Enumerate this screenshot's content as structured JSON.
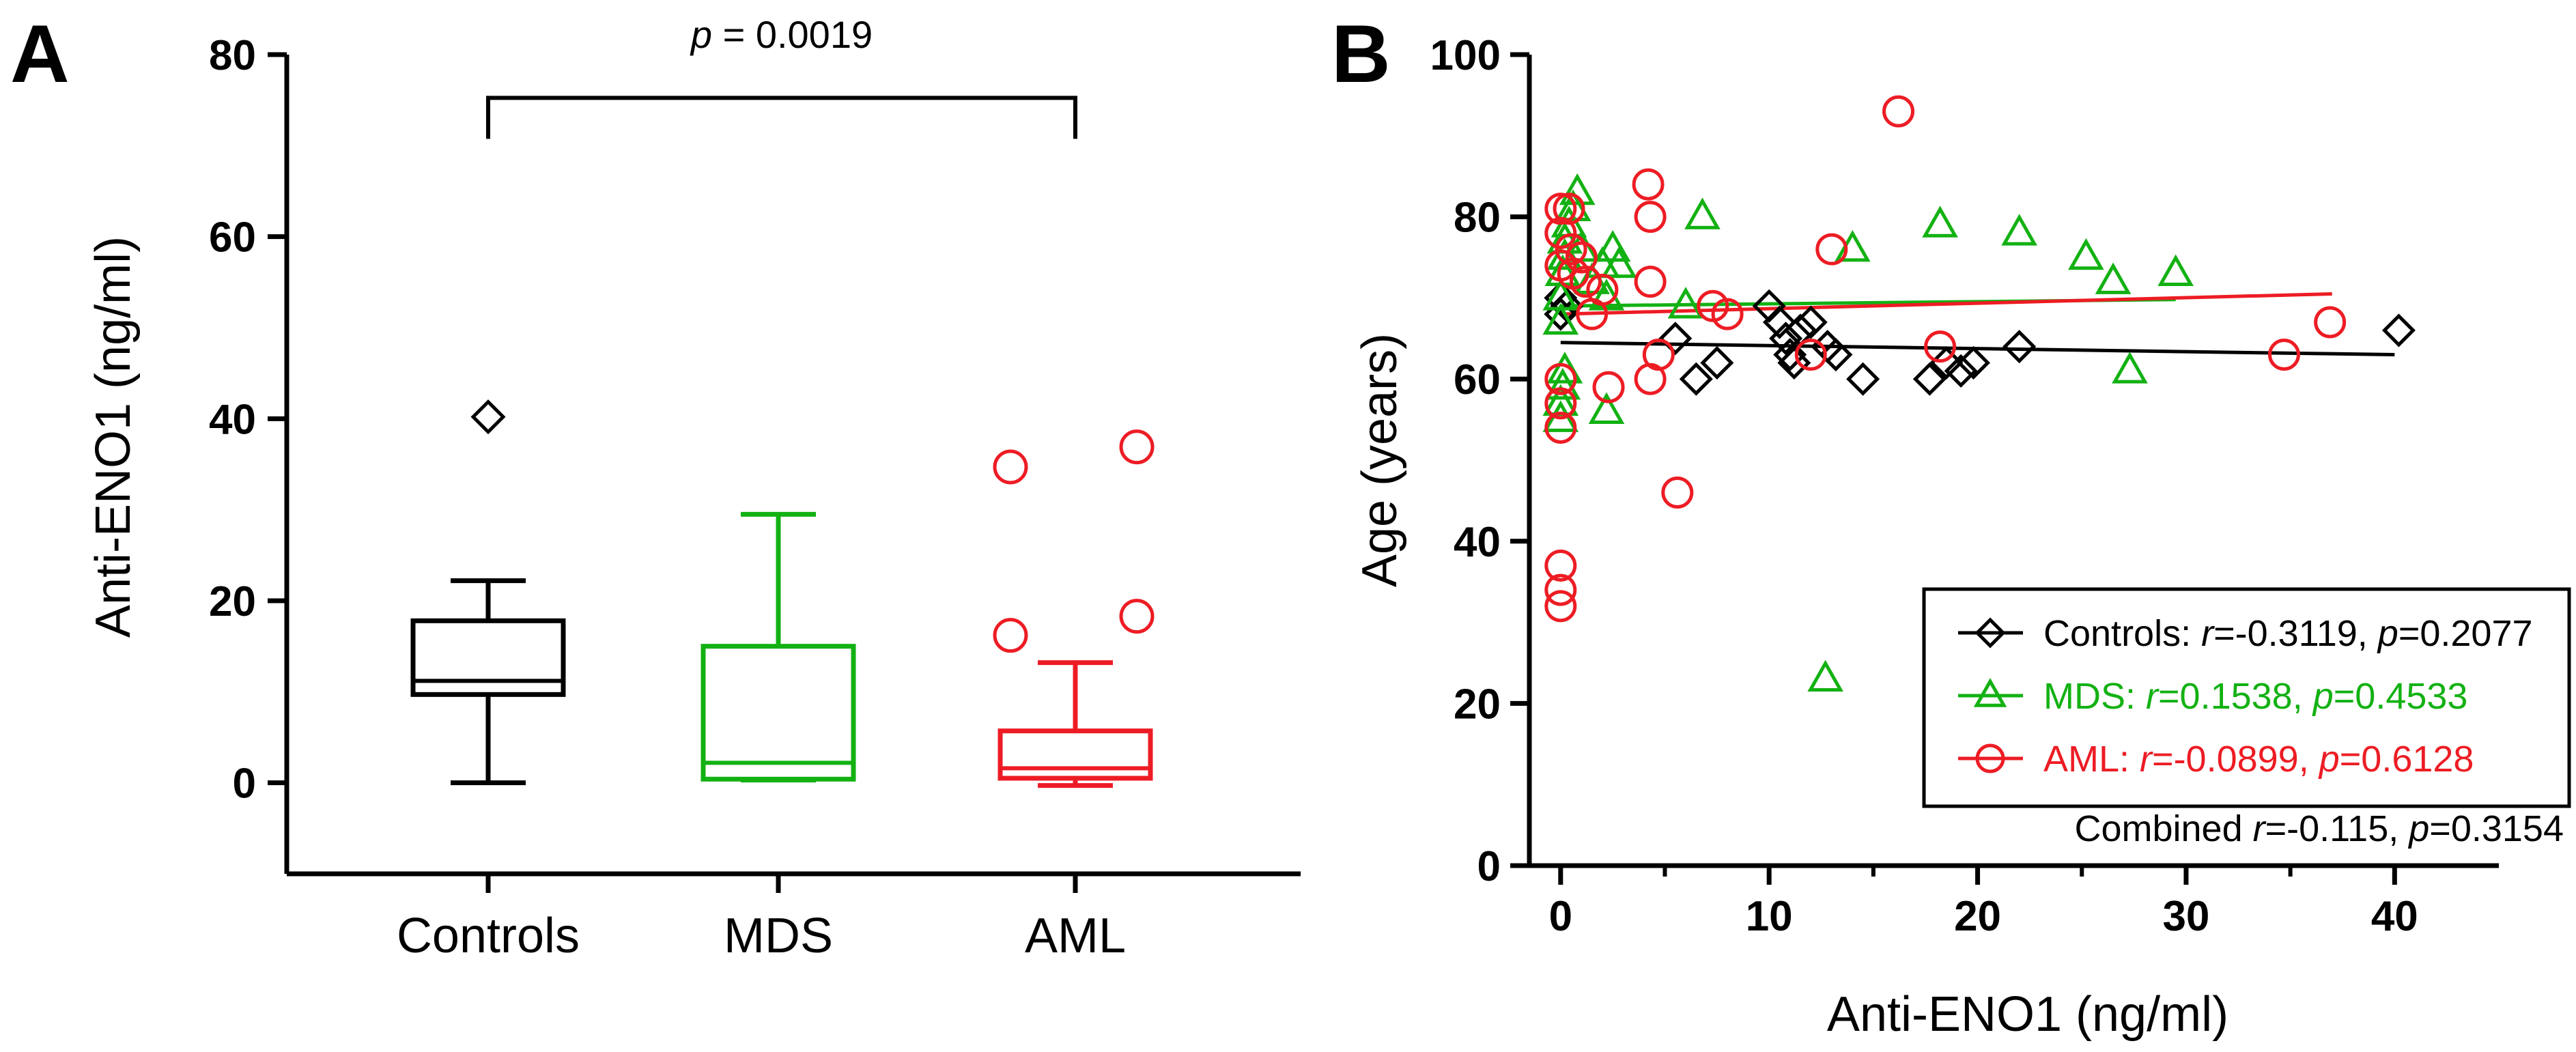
{
  "chart_data": [
    {
      "panel": "A",
      "type": "box",
      "ylabel": "Anti-ENO1 (ng/ml)",
      "ylim": [
        -10,
        80
      ],
      "yticks": [
        0,
        20,
        40,
        60,
        80
      ],
      "categories": [
        "Controls",
        "MDS",
        "AML"
      ],
      "series": [
        {
          "name": "Controls",
          "color": "#000000",
          "marker": "diamond",
          "min": 0,
          "q1": 9.7,
          "median": 11.2,
          "q3": 17.8,
          "max": 22.2,
          "outliers": [
            40.2
          ]
        },
        {
          "name": "MDS",
          "color": "#13b113",
          "marker": "triangle",
          "min": 0.3,
          "q1": 0.4,
          "median": 2.2,
          "q3": 15,
          "max": 29.5,
          "outliers": []
        },
        {
          "name": "AML",
          "color": "#ed1c24",
          "marker": "circle",
          "min": -0.3,
          "q1": 0.5,
          "median": 1.6,
          "q3": 5.7,
          "max": 13.2,
          "outliers": [
            34.7,
            36.9,
            16.2,
            18.3
          ]
        }
      ],
      "annotation": {
        "italic": "p",
        "text": " = 0.0019",
        "from": "Controls",
        "to": "AML",
        "level": 76
      }
    },
    {
      "panel": "B",
      "type": "scatter",
      "xlabel": "Anti-ENO1 (ng/ml)",
      "ylabel": "Age (years)",
      "xlim": [
        -1.5,
        45
      ],
      "ylim": [
        0,
        100
      ],
      "xticks": [
        0,
        10,
        20,
        30,
        40
      ],
      "yticks": [
        0,
        20,
        40,
        60,
        80,
        100
      ],
      "series": [
        {
          "name": "Controls",
          "color": "#000000",
          "marker": "diamond",
          "stat_r": "-0.3119",
          "stat_p": "0.2077",
          "fit": [
            [
              0,
              64.5
            ],
            [
              40,
              63
            ]
          ],
          "points": [
            [
              0,
              68
            ],
            [
              0,
              70
            ],
            [
              0.3,
              69
            ],
            [
              5.5,
              65
            ],
            [
              6.5,
              60
            ],
            [
              7.5,
              62
            ],
            [
              10,
              69
            ],
            [
              10.5,
              67
            ],
            [
              10.8,
              65
            ],
            [
              11,
              63
            ],
            [
              11.2,
              62
            ],
            [
              11.5,
              66
            ],
            [
              12,
              67
            ],
            [
              12.8,
              64
            ],
            [
              13.2,
              63
            ],
            [
              14.5,
              60
            ],
            [
              17.7,
              60
            ],
            [
              18.5,
              62
            ],
            [
              19.2,
              61
            ],
            [
              19.8,
              62
            ],
            [
              22,
              64
            ],
            [
              40.2,
              66
            ]
          ]
        },
        {
          "name": "MDS",
          "color": "#13b113",
          "marker": "triangle",
          "stat_r": "0.1538",
          "stat_p": "0.4533",
          "fit": [
            [
              0,
              69
            ],
            [
              29.5,
              69.8
            ]
          ],
          "points": [
            [
              0,
              55
            ],
            [
              0,
              57
            ],
            [
              0.1,
              59
            ],
            [
              0.2,
              61
            ],
            [
              0,
              67
            ],
            [
              0,
              70
            ],
            [
              0.1,
              73
            ],
            [
              0.2,
              75
            ],
            [
              0.2,
              77
            ],
            [
              0.4,
              79
            ],
            [
              0.6,
              81
            ],
            [
              0.8,
              83
            ],
            [
              1,
              76
            ],
            [
              1.5,
              72
            ],
            [
              2,
              74
            ],
            [
              2.2,
              70
            ],
            [
              2.5,
              76
            ],
            [
              2.8,
              74
            ],
            [
              2.2,
              56
            ],
            [
              6,
              69
            ],
            [
              6.8,
              80
            ],
            [
              14,
              76
            ],
            [
              12.7,
              23
            ],
            [
              18.2,
              79
            ],
            [
              22,
              78
            ],
            [
              25.2,
              75
            ],
            [
              26.5,
              72
            ],
            [
              27.3,
              61
            ],
            [
              29.5,
              73
            ]
          ]
        },
        {
          "name": "AML",
          "color": "#ed1c24",
          "marker": "circle",
          "stat_r": "-0.0899",
          "stat_p": "0.6128",
          "fit": [
            [
              0,
              68
            ],
            [
              37,
              70.5
            ]
          ],
          "points": [
            [
              0,
              32
            ],
            [
              0,
              34
            ],
            [
              0,
              37
            ],
            [
              0,
              54
            ],
            [
              0,
              57
            ],
            [
              0,
              60
            ],
            [
              0,
              74
            ],
            [
              0,
              78
            ],
            [
              0,
              81
            ],
            [
              0.4,
              81
            ],
            [
              0.5,
              76
            ],
            [
              0.6,
              73
            ],
            [
              1,
              75
            ],
            [
              1.2,
              72
            ],
            [
              1.5,
              68
            ],
            [
              2,
              71
            ],
            [
              2.3,
              59
            ],
            [
              4.2,
              84
            ],
            [
              4.3,
              80
            ],
            [
              4.3,
              72
            ],
            [
              4.3,
              60
            ],
            [
              4.7,
              63
            ],
            [
              5.6,
              46
            ],
            [
              7.3,
              69
            ],
            [
              8,
              68
            ],
            [
              12,
              63
            ],
            [
              13,
              76
            ],
            [
              16.2,
              93
            ],
            [
              18.2,
              64
            ],
            [
              34.7,
              63
            ],
            [
              36.9,
              67
            ]
          ]
        }
      ],
      "combined": {
        "label": "Combined ",
        "r": "-0.115",
        "p": "0.3154"
      }
    }
  ],
  "labels": {
    "panel_a": "A",
    "panel_b": "B",
    "r_symbol": "r",
    "p_symbol": "p",
    "eq": "=",
    "sep": ", "
  },
  "colors": {
    "controls": "#000000",
    "mds": "#13b113",
    "aml": "#ed1c24",
    "axis": "#000000"
  }
}
